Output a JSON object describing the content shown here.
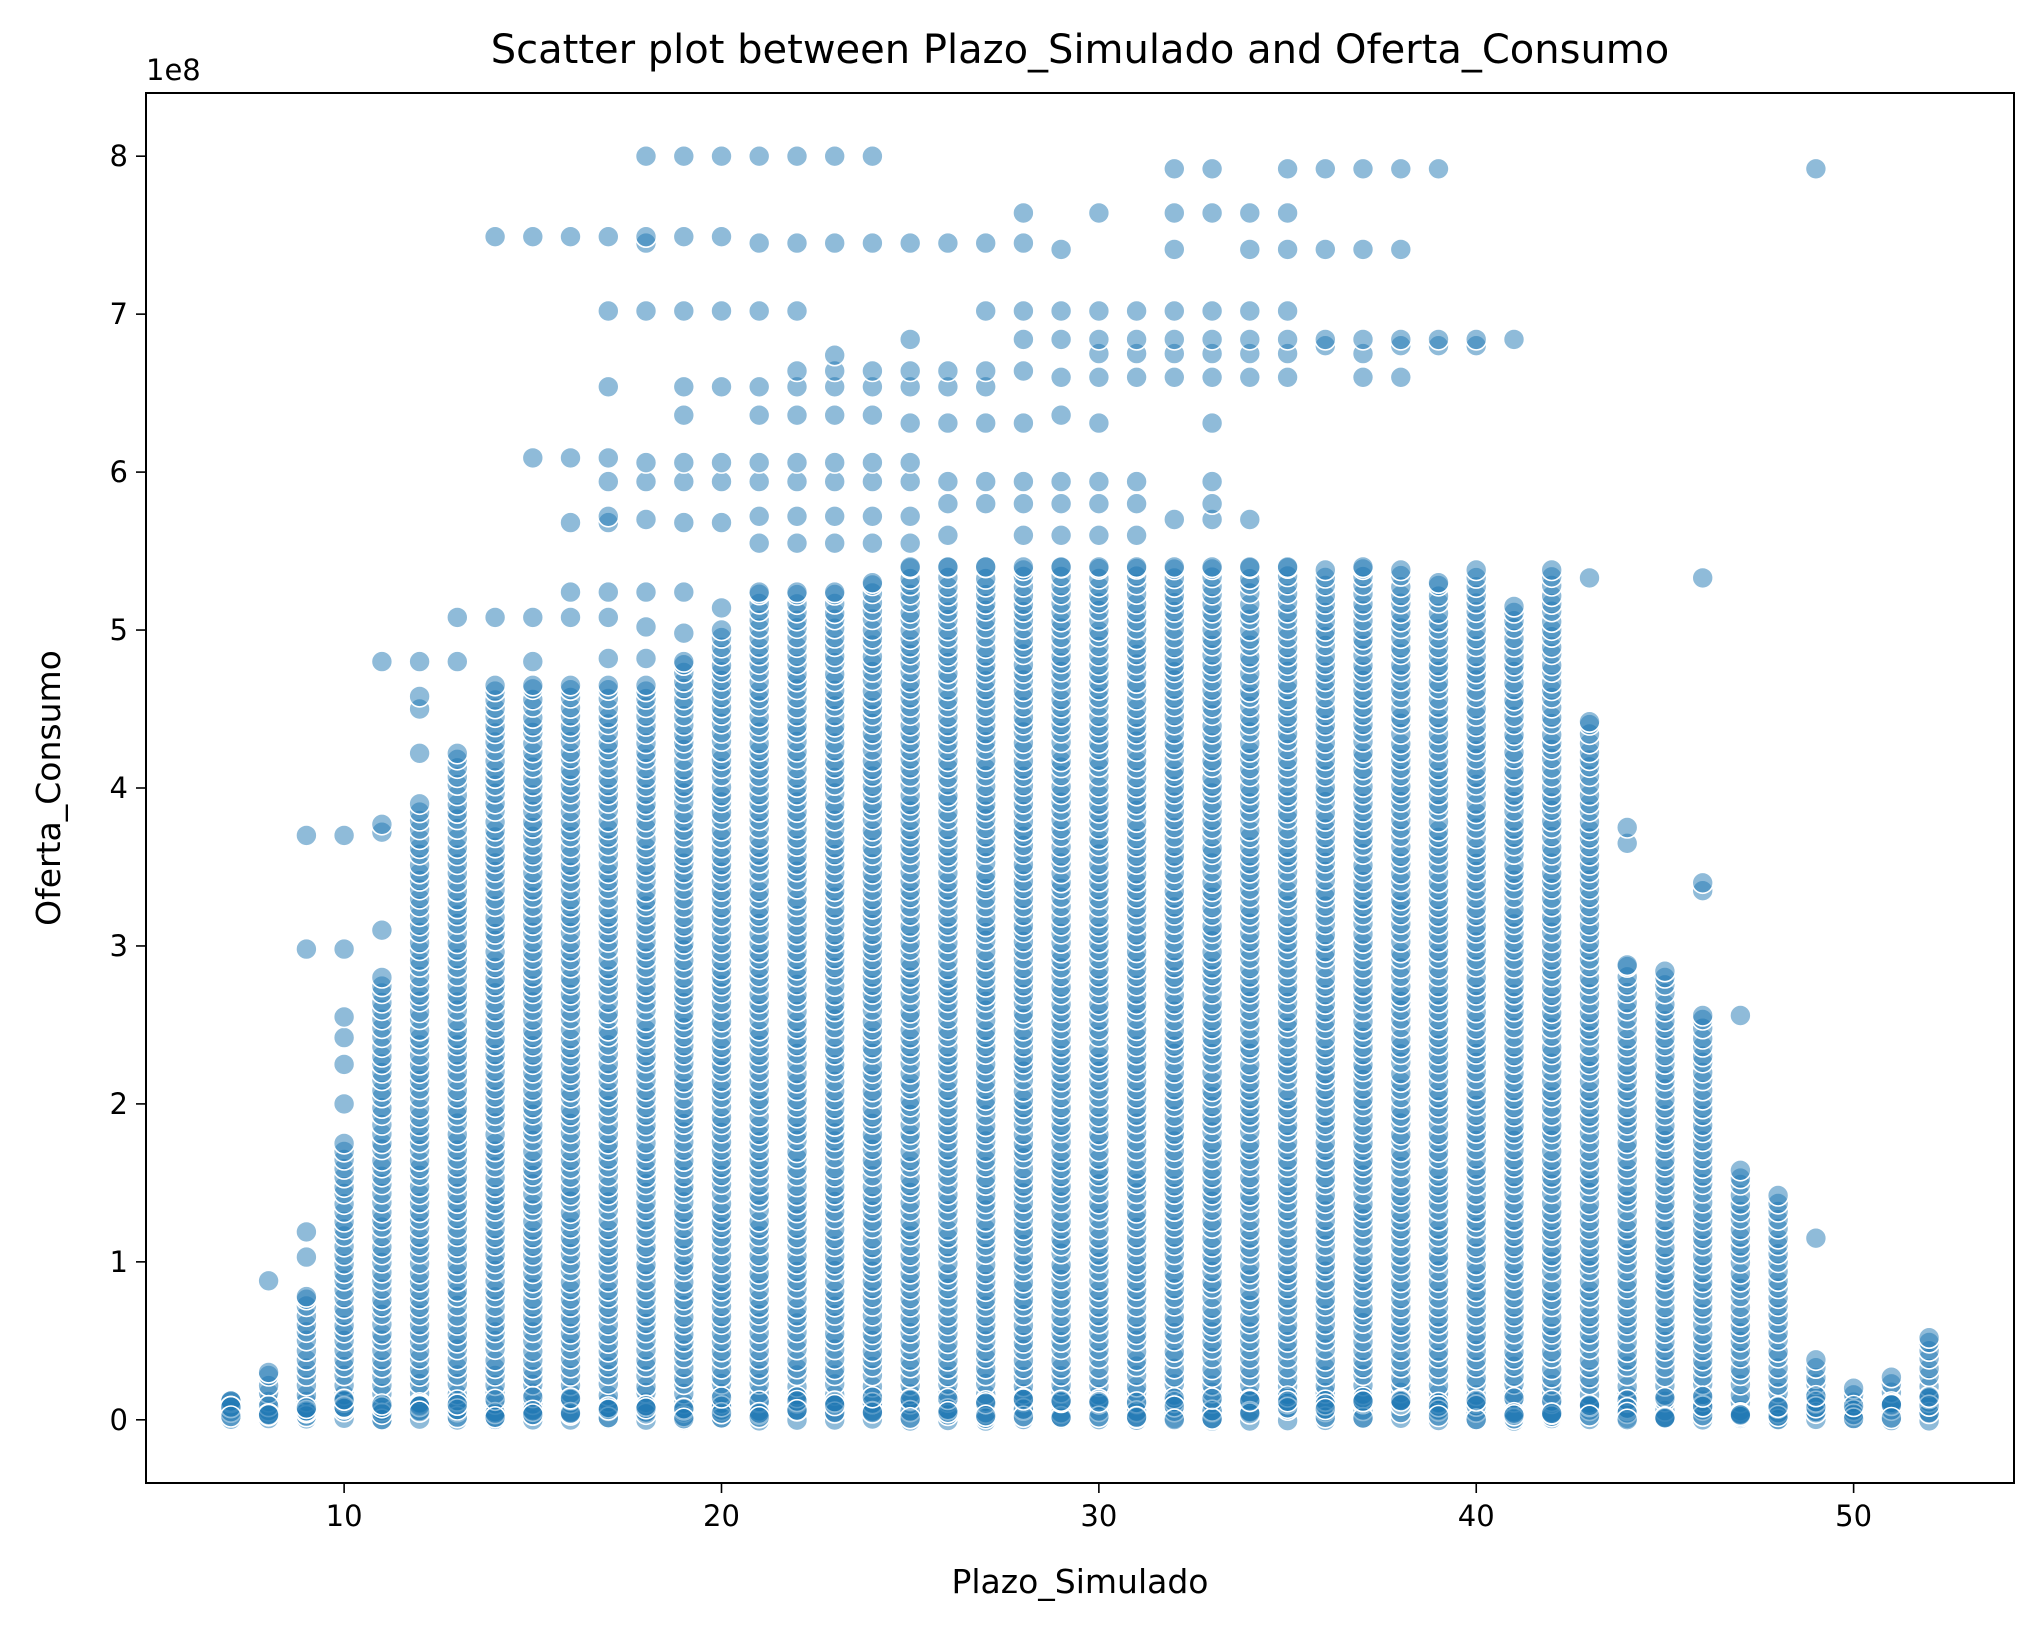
{
  "chart_data": {
    "type": "scatter",
    "title": "Scatter plot between Plazo_Simulado and Oferta_Consumo",
    "xlabel": "Plazo_Simulado",
    "ylabel": "Oferta_Consumo",
    "y_offset_label": "1e8",
    "xlim": [
      4.75,
      54.25
    ],
    "ylim": [
      -0.4,
      8.4
    ],
    "y_scale_factor": 100000000,
    "xticks": [
      10,
      20,
      30,
      40,
      50
    ],
    "xtick_labels": [
      "10",
      "20",
      "30",
      "40",
      "50"
    ],
    "yticks": [
      0,
      1,
      2,
      3,
      4,
      5,
      6,
      7,
      8
    ],
    "ytick_labels": [
      "0",
      "1",
      "2",
      "3",
      "4",
      "5",
      "6",
      "7",
      "8"
    ],
    "grid": false,
    "legend": "none",
    "marker_color": "#1f77b4",
    "marker_alpha": 0.5,
    "marker_edge_color": "#ffffff",
    "columns": [
      {
        "x": 7,
        "ymin": 0.0,
        "ymax": 0.12,
        "extra": []
      },
      {
        "x": 8,
        "ymin": 0.0,
        "ymax": 0.3,
        "extra": [
          0.88
        ]
      },
      {
        "x": 9,
        "ymin": 0.0,
        "ymax": 0.78,
        "extra": [
          1.03,
          1.19,
          2.98,
          3.7
        ]
      },
      {
        "x": 10,
        "ymin": 0.0,
        "ymax": 1.75,
        "extra": [
          2.0,
          2.25,
          2.42,
          2.55,
          2.98,
          3.7
        ]
      },
      {
        "x": 11,
        "ymin": 0.0,
        "ymax": 2.8,
        "extra": [
          3.1,
          3.72,
          3.77,
          4.8
        ]
      },
      {
        "x": 12,
        "ymin": 0.0,
        "ymax": 3.9,
        "extra": [
          4.22,
          4.5,
          4.58,
          4.8
        ]
      },
      {
        "x": 13,
        "ymin": 0.0,
        "ymax": 4.22,
        "extra": [
          4.8,
          5.08
        ]
      },
      {
        "x": 14,
        "ymin": 0.0,
        "ymax": 4.65,
        "extra": [
          5.08,
          7.49
        ]
      },
      {
        "x": 15,
        "ymin": 0.0,
        "ymax": 4.65,
        "extra": [
          4.8,
          5.08,
          6.09,
          7.49
        ]
      },
      {
        "x": 16,
        "ymin": 0.0,
        "ymax": 4.65,
        "extra": [
          5.08,
          5.24,
          5.68,
          6.09,
          7.49
        ]
      },
      {
        "x": 17,
        "ymin": 0.0,
        "ymax": 4.65,
        "extra": [
          4.82,
          5.08,
          5.24,
          5.68,
          5.72,
          5.94,
          6.09,
          6.54,
          7.02,
          7.49
        ]
      },
      {
        "x": 18,
        "ymin": 0.0,
        "ymax": 4.65,
        "extra": [
          4.82,
          5.02,
          5.24,
          5.7,
          5.94,
          6.06,
          7.02,
          7.45,
          7.49,
          8.0
        ]
      },
      {
        "x": 19,
        "ymin": 0.0,
        "ymax": 4.8,
        "extra": [
          4.98,
          5.24,
          5.68,
          5.94,
          6.06,
          6.36,
          6.54,
          7.02,
          7.49,
          8.0
        ]
      },
      {
        "x": 20,
        "ymin": 0.0,
        "ymax": 5.0,
        "extra": [
          5.14,
          5.68,
          5.94,
          6.06,
          6.54,
          7.02,
          7.49,
          8.0
        ]
      },
      {
        "x": 21,
        "ymin": 0.0,
        "ymax": 5.24,
        "extra": [
          5.55,
          5.72,
          5.94,
          6.06,
          6.36,
          6.54,
          7.02,
          7.45,
          8.0
        ]
      },
      {
        "x": 22,
        "ymin": 0.0,
        "ymax": 5.24,
        "extra": [
          5.55,
          5.72,
          5.94,
          6.06,
          6.36,
          6.54,
          6.64,
          7.02,
          7.45,
          8.0
        ]
      },
      {
        "x": 23,
        "ymin": 0.0,
        "ymax": 5.24,
        "extra": [
          5.55,
          5.72,
          5.94,
          6.06,
          6.36,
          6.54,
          6.64,
          6.74,
          7.45,
          8.0
        ]
      },
      {
        "x": 24,
        "ymin": 0.0,
        "ymax": 5.3,
        "extra": [
          5.55,
          5.72,
          5.94,
          6.06,
          6.36,
          6.54,
          6.64,
          7.45,
          8.0
        ]
      },
      {
        "x": 25,
        "ymin": 0.0,
        "ymax": 5.4,
        "extra": [
          5.55,
          5.72,
          5.94,
          6.06,
          6.31,
          6.54,
          6.64,
          6.84,
          7.45
        ]
      },
      {
        "x": 26,
        "ymin": 0.0,
        "ymax": 5.4,
        "extra": [
          5.6,
          5.8,
          5.94,
          6.31,
          6.54,
          6.64,
          7.45
        ]
      },
      {
        "x": 27,
        "ymin": 0.0,
        "ymax": 5.4,
        "extra": [
          5.8,
          5.94,
          6.31,
          6.54,
          6.64,
          7.02,
          7.45
        ]
      },
      {
        "x": 28,
        "ymin": 0.0,
        "ymax": 5.4,
        "extra": [
          5.6,
          5.8,
          5.94,
          6.31,
          6.64,
          6.84,
          7.02,
          7.45,
          7.64
        ]
      },
      {
        "x": 29,
        "ymin": 0.0,
        "ymax": 5.4,
        "extra": [
          5.6,
          5.8,
          5.94,
          6.36,
          6.6,
          6.84,
          7.02,
          7.41
        ]
      },
      {
        "x": 30,
        "ymin": 0.0,
        "ymax": 5.4,
        "extra": [
          5.6,
          5.8,
          5.94,
          6.31,
          6.6,
          6.75,
          6.84,
          7.02,
          7.64
        ]
      },
      {
        "x": 31,
        "ymin": 0.0,
        "ymax": 5.4,
        "extra": [
          5.6,
          5.8,
          5.94,
          6.6,
          6.75,
          6.84,
          7.02
        ]
      },
      {
        "x": 32,
        "ymin": 0.0,
        "ymax": 5.4,
        "extra": [
          5.7,
          6.6,
          6.75,
          6.84,
          7.02,
          7.41,
          7.64,
          7.92
        ]
      },
      {
        "x": 33,
        "ymin": 0.0,
        "ymax": 5.4,
        "extra": [
          5.7,
          5.8,
          5.94,
          6.31,
          6.6,
          6.75,
          6.84,
          7.02,
          7.64,
          7.92
        ]
      },
      {
        "x": 34,
        "ymin": 0.0,
        "ymax": 5.4,
        "extra": [
          5.7,
          6.6,
          6.75,
          6.84,
          7.02,
          7.41,
          7.64
        ]
      },
      {
        "x": 35,
        "ymin": 0.0,
        "ymax": 5.4,
        "extra": [
          6.6,
          6.75,
          6.84,
          7.02,
          7.41,
          7.64,
          7.92
        ]
      },
      {
        "x": 36,
        "ymin": 0.0,
        "ymax": 5.38,
        "extra": [
          6.8,
          6.84,
          7.41,
          7.92
        ]
      },
      {
        "x": 37,
        "ymin": 0.0,
        "ymax": 5.4,
        "extra": [
          6.6,
          6.75,
          6.84,
          7.41,
          7.92
        ]
      },
      {
        "x": 38,
        "ymin": 0.0,
        "ymax": 5.38,
        "extra": [
          6.6,
          6.8,
          6.84,
          7.41,
          7.92
        ]
      },
      {
        "x": 39,
        "ymin": 0.0,
        "ymax": 5.3,
        "extra": [
          6.8,
          6.84,
          7.92
        ]
      },
      {
        "x": 40,
        "ymin": 0.0,
        "ymax": 5.38,
        "extra": [
          6.8,
          6.84
        ]
      },
      {
        "x": 41,
        "ymin": 0.0,
        "ymax": 5.15,
        "extra": [
          6.84
        ]
      },
      {
        "x": 42,
        "ymin": 0.0,
        "ymax": 5.38,
        "extra": []
      },
      {
        "x": 43,
        "ymin": 0.0,
        "ymax": 4.42,
        "extra": [
          5.33
        ]
      },
      {
        "x": 44,
        "ymin": 0.0,
        "ymax": 2.88,
        "extra": [
          3.65,
          3.75
        ]
      },
      {
        "x": 45,
        "ymin": 0.0,
        "ymax": 2.84,
        "extra": []
      },
      {
        "x": 46,
        "ymin": 0.0,
        "ymax": 2.56,
        "extra": [
          3.35,
          3.4,
          5.33
        ]
      },
      {
        "x": 47,
        "ymin": 0.0,
        "ymax": 1.58,
        "extra": [
          2.56
        ]
      },
      {
        "x": 48,
        "ymin": 0.0,
        "ymax": 1.42,
        "extra": []
      },
      {
        "x": 49,
        "ymin": 0.0,
        "ymax": 0.38,
        "extra": [
          1.15,
          7.92
        ]
      },
      {
        "x": 50,
        "ymin": 0.0,
        "ymax": 0.2,
        "extra": []
      },
      {
        "x": 51,
        "ymin": 0.0,
        "ymax": 0.27,
        "extra": []
      },
      {
        "x": 52,
        "ymin": 0.0,
        "ymax": 0.52,
        "extra": []
      }
    ]
  }
}
